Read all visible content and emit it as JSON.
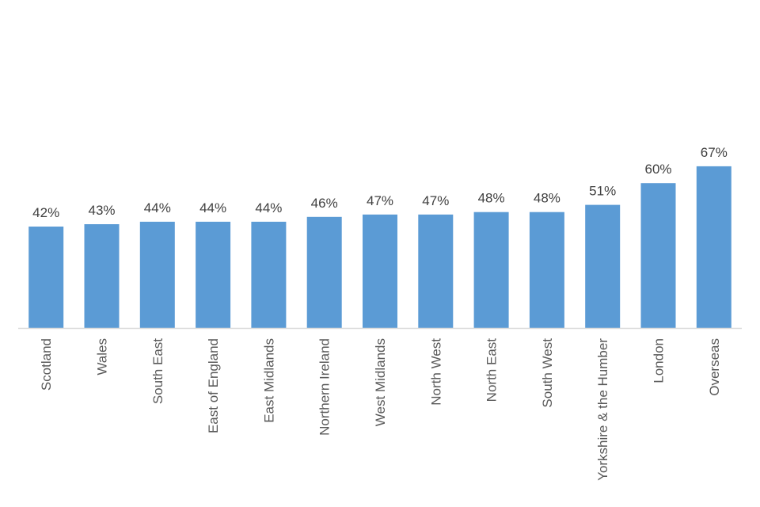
{
  "chart_data": {
    "type": "bar",
    "title": "",
    "xlabel": "",
    "ylabel": "",
    "categories": [
      "Scotland",
      "Wales",
      "South East",
      "East of England",
      "East Midlands",
      "Northern Ireland",
      "West Midlands",
      "North West",
      "North East",
      "South West",
      "Yorkshire & the Humber",
      "London",
      "Overseas"
    ],
    "values": [
      0.42,
      0.43,
      0.44,
      0.44,
      0.44,
      0.46,
      0.47,
      0.47,
      0.48,
      0.48,
      0.51,
      0.6,
      0.67
    ],
    "value_labels": [
      "42%",
      "43%",
      "44%",
      "44%",
      "44%",
      "46%",
      "47%",
      "47%",
      "48%",
      "48%",
      "51%",
      "60%",
      "67%"
    ],
    "ylim": [
      0,
      0.7
    ],
    "grid": false,
    "legend": "none",
    "bar_color": "#5b9bd5",
    "axis_color": "#d9d9d9"
  }
}
